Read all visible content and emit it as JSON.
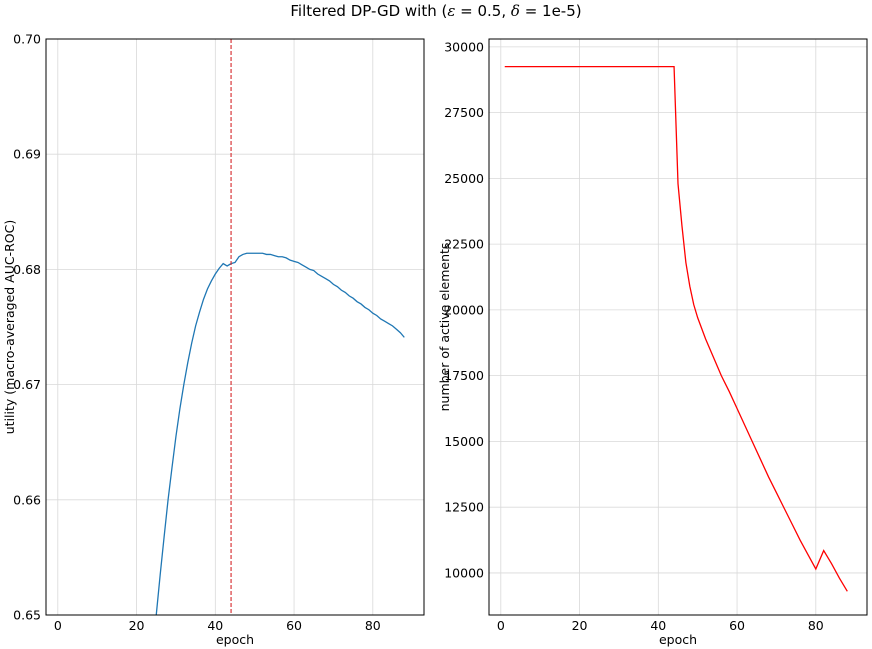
{
  "figure": {
    "title_prefix": "Filtered DP-GD with (",
    "title_eps_symbol": "ε",
    "title_eps_value": " = 0.5, ",
    "title_delta_symbol": "δ",
    "title_delta_value": " = 1e-5)"
  },
  "chart_data": [
    {
      "type": "line",
      "xlabel": "epoch",
      "ylabel": "utility (macro-averaged AUC-ROC)",
      "xlim": [
        -3,
        93
      ],
      "ylim": [
        0.65,
        0.7
      ],
      "xticks": [
        0,
        20,
        40,
        60,
        80
      ],
      "yticks": [
        0.65,
        0.66,
        0.67,
        0.68,
        0.69,
        0.7
      ],
      "ytick_labels": [
        "0.65",
        "0.66",
        "0.67",
        "0.68",
        "0.69",
        "0.70"
      ],
      "grid": true,
      "vline": {
        "x": 44,
        "color": "#d62728",
        "style": "dashed"
      },
      "series": [
        {
          "color": "#1f77b4",
          "x": [
            25,
            26,
            27,
            28,
            29,
            30,
            31,
            32,
            33,
            34,
            35,
            36,
            37,
            38,
            39,
            40,
            41,
            42,
            43,
            44,
            45,
            46,
            47,
            48,
            49,
            50,
            51,
            52,
            53,
            54,
            55,
            56,
            57,
            58,
            59,
            60,
            61,
            62,
            63,
            64,
            65,
            66,
            67,
            68,
            69,
            70,
            71,
            72,
            73,
            74,
            75,
            76,
            77,
            78,
            79,
            80,
            81,
            82,
            83,
            84,
            85,
            86,
            87,
            88
          ],
          "y": [
            0.65,
            0.6535,
            0.6568,
            0.66,
            0.6628,
            0.6655,
            0.6679,
            0.67,
            0.6719,
            0.6736,
            0.6751,
            0.6763,
            0.6774,
            0.6783,
            0.679,
            0.6796,
            0.6801,
            0.6805,
            0.6803,
            0.6805,
            0.6806,
            0.6811,
            0.6813,
            0.6814,
            0.6814,
            0.6814,
            0.6814,
            0.6814,
            0.6813,
            0.6813,
            0.6812,
            0.6811,
            0.6811,
            0.681,
            0.6808,
            0.6807,
            0.6806,
            0.6804,
            0.6802,
            0.68,
            0.6799,
            0.6796,
            0.6794,
            0.6792,
            0.679,
            0.6787,
            0.6785,
            0.6782,
            0.678,
            0.6777,
            0.6775,
            0.6772,
            0.677,
            0.6767,
            0.6765,
            0.6762,
            0.676,
            0.6757,
            0.6755,
            0.6753,
            0.6751,
            0.6748,
            0.6745,
            0.6741
          ]
        }
      ]
    },
    {
      "type": "line",
      "xlabel": "epoch",
      "ylabel": "number of active elements",
      "xlim": [
        -3,
        93
      ],
      "ylim": [
        8400,
        30300
      ],
      "xticks": [
        0,
        20,
        40,
        60,
        80
      ],
      "yticks": [
        10000,
        12500,
        15000,
        17500,
        20000,
        22500,
        25000,
        27500,
        30000
      ],
      "grid": true,
      "series": [
        {
          "color": "#ff0000",
          "x": [
            1,
            5,
            10,
            15,
            20,
            25,
            30,
            35,
            40,
            44,
            45,
            46,
            47,
            48,
            49,
            50,
            52,
            54,
            56,
            58,
            60,
            62,
            64,
            66,
            68,
            70,
            72,
            74,
            76,
            78,
            80,
            82,
            84,
            86,
            88
          ],
          "y": [
            29250,
            29250,
            29250,
            29250,
            29250,
            29250,
            29250,
            29250,
            29250,
            29250,
            24800,
            23200,
            21800,
            20900,
            20200,
            19700,
            18900,
            18200,
            17500,
            16900,
            16250,
            15600,
            14950,
            14300,
            13650,
            13050,
            12450,
            11850,
            11250,
            10700,
            10150,
            9650,
            9100,
            8600,
            9300
          ]
        }
      ]
    }
  ]
}
